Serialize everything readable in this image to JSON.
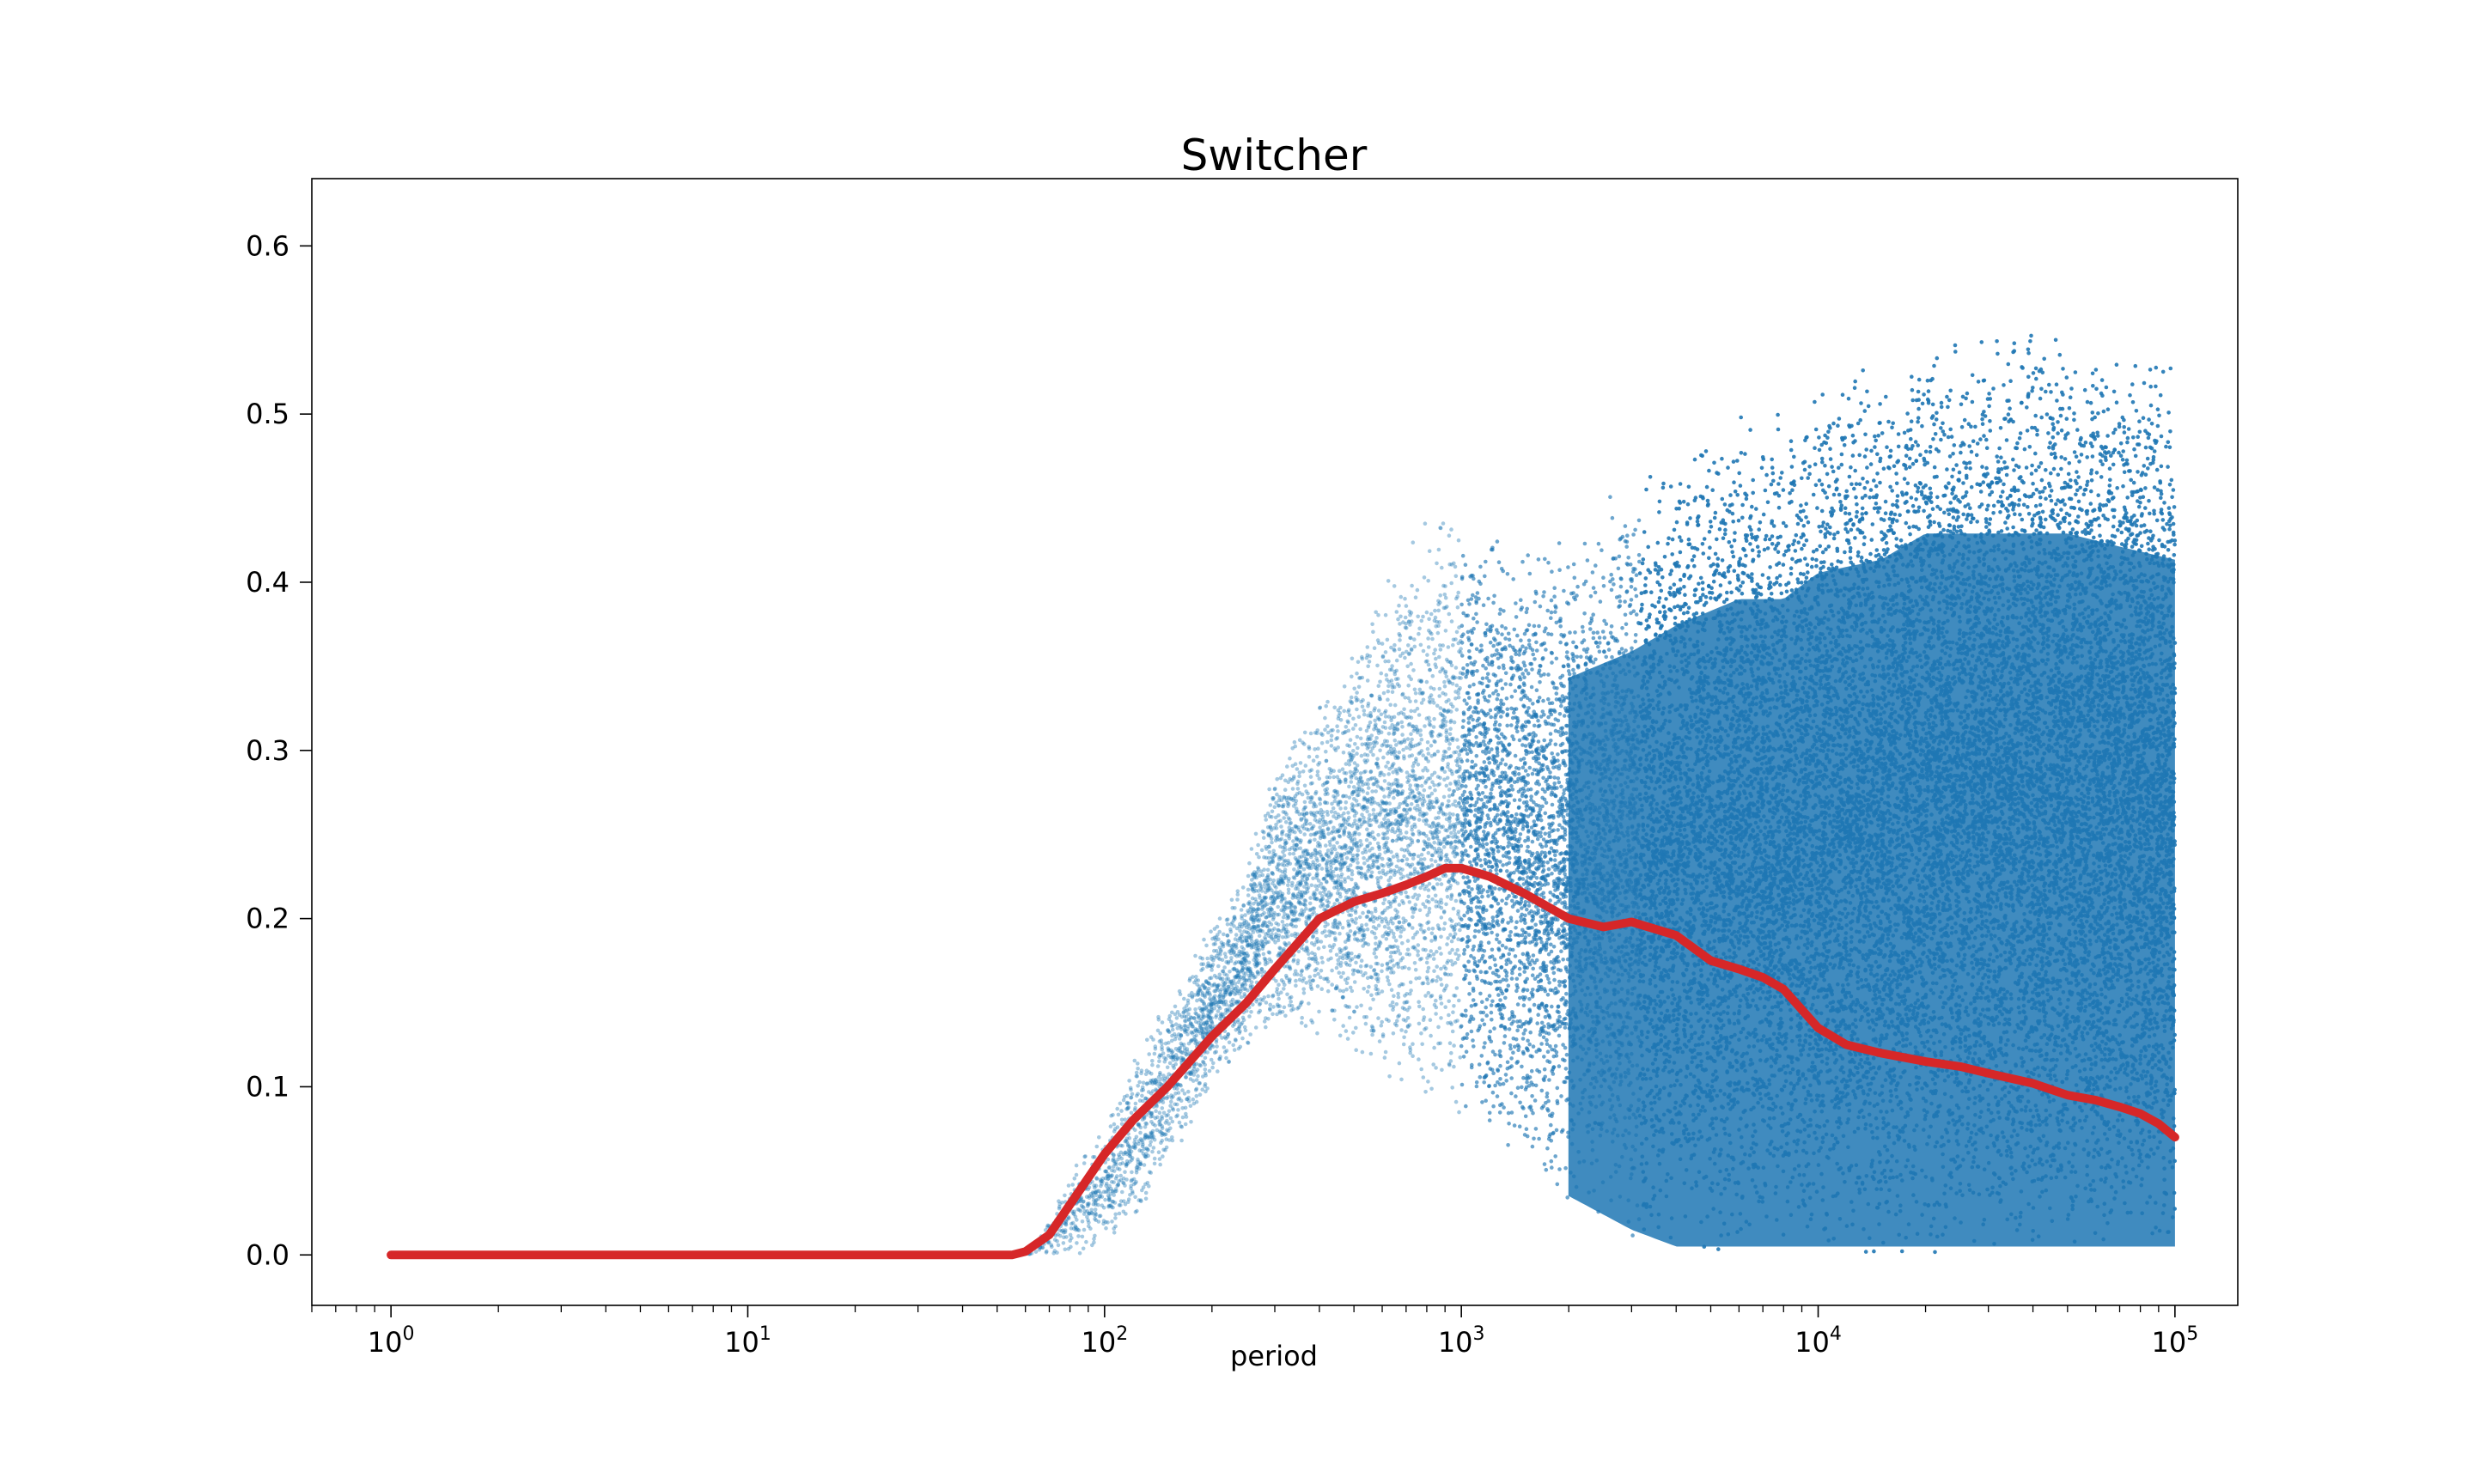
{
  "chart_data": {
    "type": "scatter",
    "title": "Switcher",
    "xlabel": "period",
    "ylabel": "",
    "x_scale": "log",
    "xlim": [
      0.6,
      150000
    ],
    "ylim": [
      -0.03,
      0.64
    ],
    "x_ticks": [
      {
        "value": 1,
        "base": "10",
        "exp": "0"
      },
      {
        "value": 10,
        "base": "10",
        "exp": "1"
      },
      {
        "value": 100,
        "base": "10",
        "exp": "2"
      },
      {
        "value": 1000,
        "base": "10",
        "exp": "3"
      },
      {
        "value": 10000,
        "base": "10",
        "exp": "4"
      },
      {
        "value": 100000,
        "base": "10",
        "exp": "5"
      }
    ],
    "y_ticks": [
      {
        "value": 0.0,
        "label": "0.0"
      },
      {
        "value": 0.1,
        "label": "0.1"
      },
      {
        "value": 0.2,
        "label": "0.2"
      },
      {
        "value": 0.3,
        "label": "0.3"
      },
      {
        "value": 0.4,
        "label": "0.4"
      },
      {
        "value": 0.5,
        "label": "0.5"
      },
      {
        "value": 0.6,
        "label": "0.6"
      }
    ],
    "grid": false,
    "legend": "none",
    "series": [
      {
        "kind": "scatter",
        "color": "#1f77b4",
        "envelope": {
          "x": [
            60,
            70,
            80,
            100,
            130,
            160,
            200,
            250,
            300,
            400,
            500,
            600,
            800,
            1000,
            1500,
            2000,
            3000,
            4000,
            6000,
            8000,
            10000,
            15000,
            20000,
            30000,
            50000,
            70000,
            100000
          ],
          "high": [
            0.0,
            0.02,
            0.05,
            0.08,
            0.13,
            0.16,
            0.2,
            0.23,
            0.3,
            0.33,
            0.36,
            0.4,
            0.44,
            0.44,
            0.42,
            0.44,
            0.46,
            0.48,
            0.5,
            0.5,
            0.52,
            0.53,
            0.55,
            0.55,
            0.55,
            0.54,
            0.53
          ],
          "low": [
            0.0,
            0.0,
            0.0,
            0.0,
            0.03,
            0.06,
            0.1,
            0.12,
            0.13,
            0.13,
            0.12,
            0.1,
            0.09,
            0.08,
            0.05,
            0.03,
            0.01,
            0.0,
            0.0,
            0.0,
            0.0,
            0.0,
            0.0,
            0.0,
            0.0,
            0.0,
            0.0
          ]
        }
      },
      {
        "kind": "line",
        "color": "#d62728",
        "x": [
          1,
          10,
          55,
          60,
          70,
          80,
          100,
          120,
          150,
          200,
          250,
          300,
          400,
          500,
          600,
          700,
          800,
          900,
          1000,
          1200,
          1500,
          2000,
          2500,
          3000,
          4000,
          5000,
          6000,
          7000,
          8000,
          10000,
          12000,
          15000,
          20000,
          25000,
          30000,
          40000,
          50000,
          60000,
          70000,
          80000,
          90000,
          100000
        ],
        "y": [
          0,
          0,
          0,
          0.002,
          0.012,
          0.03,
          0.06,
          0.08,
          0.1,
          0.13,
          0.15,
          0.17,
          0.2,
          0.21,
          0.215,
          0.22,
          0.225,
          0.23,
          0.23,
          0.225,
          0.215,
          0.2,
          0.195,
          0.198,
          0.19,
          0.175,
          0.17,
          0.165,
          0.158,
          0.135,
          0.125,
          0.12,
          0.115,
          0.112,
          0.108,
          0.102,
          0.095,
          0.092,
          0.088,
          0.084,
          0.078,
          0.07
        ]
      }
    ]
  }
}
